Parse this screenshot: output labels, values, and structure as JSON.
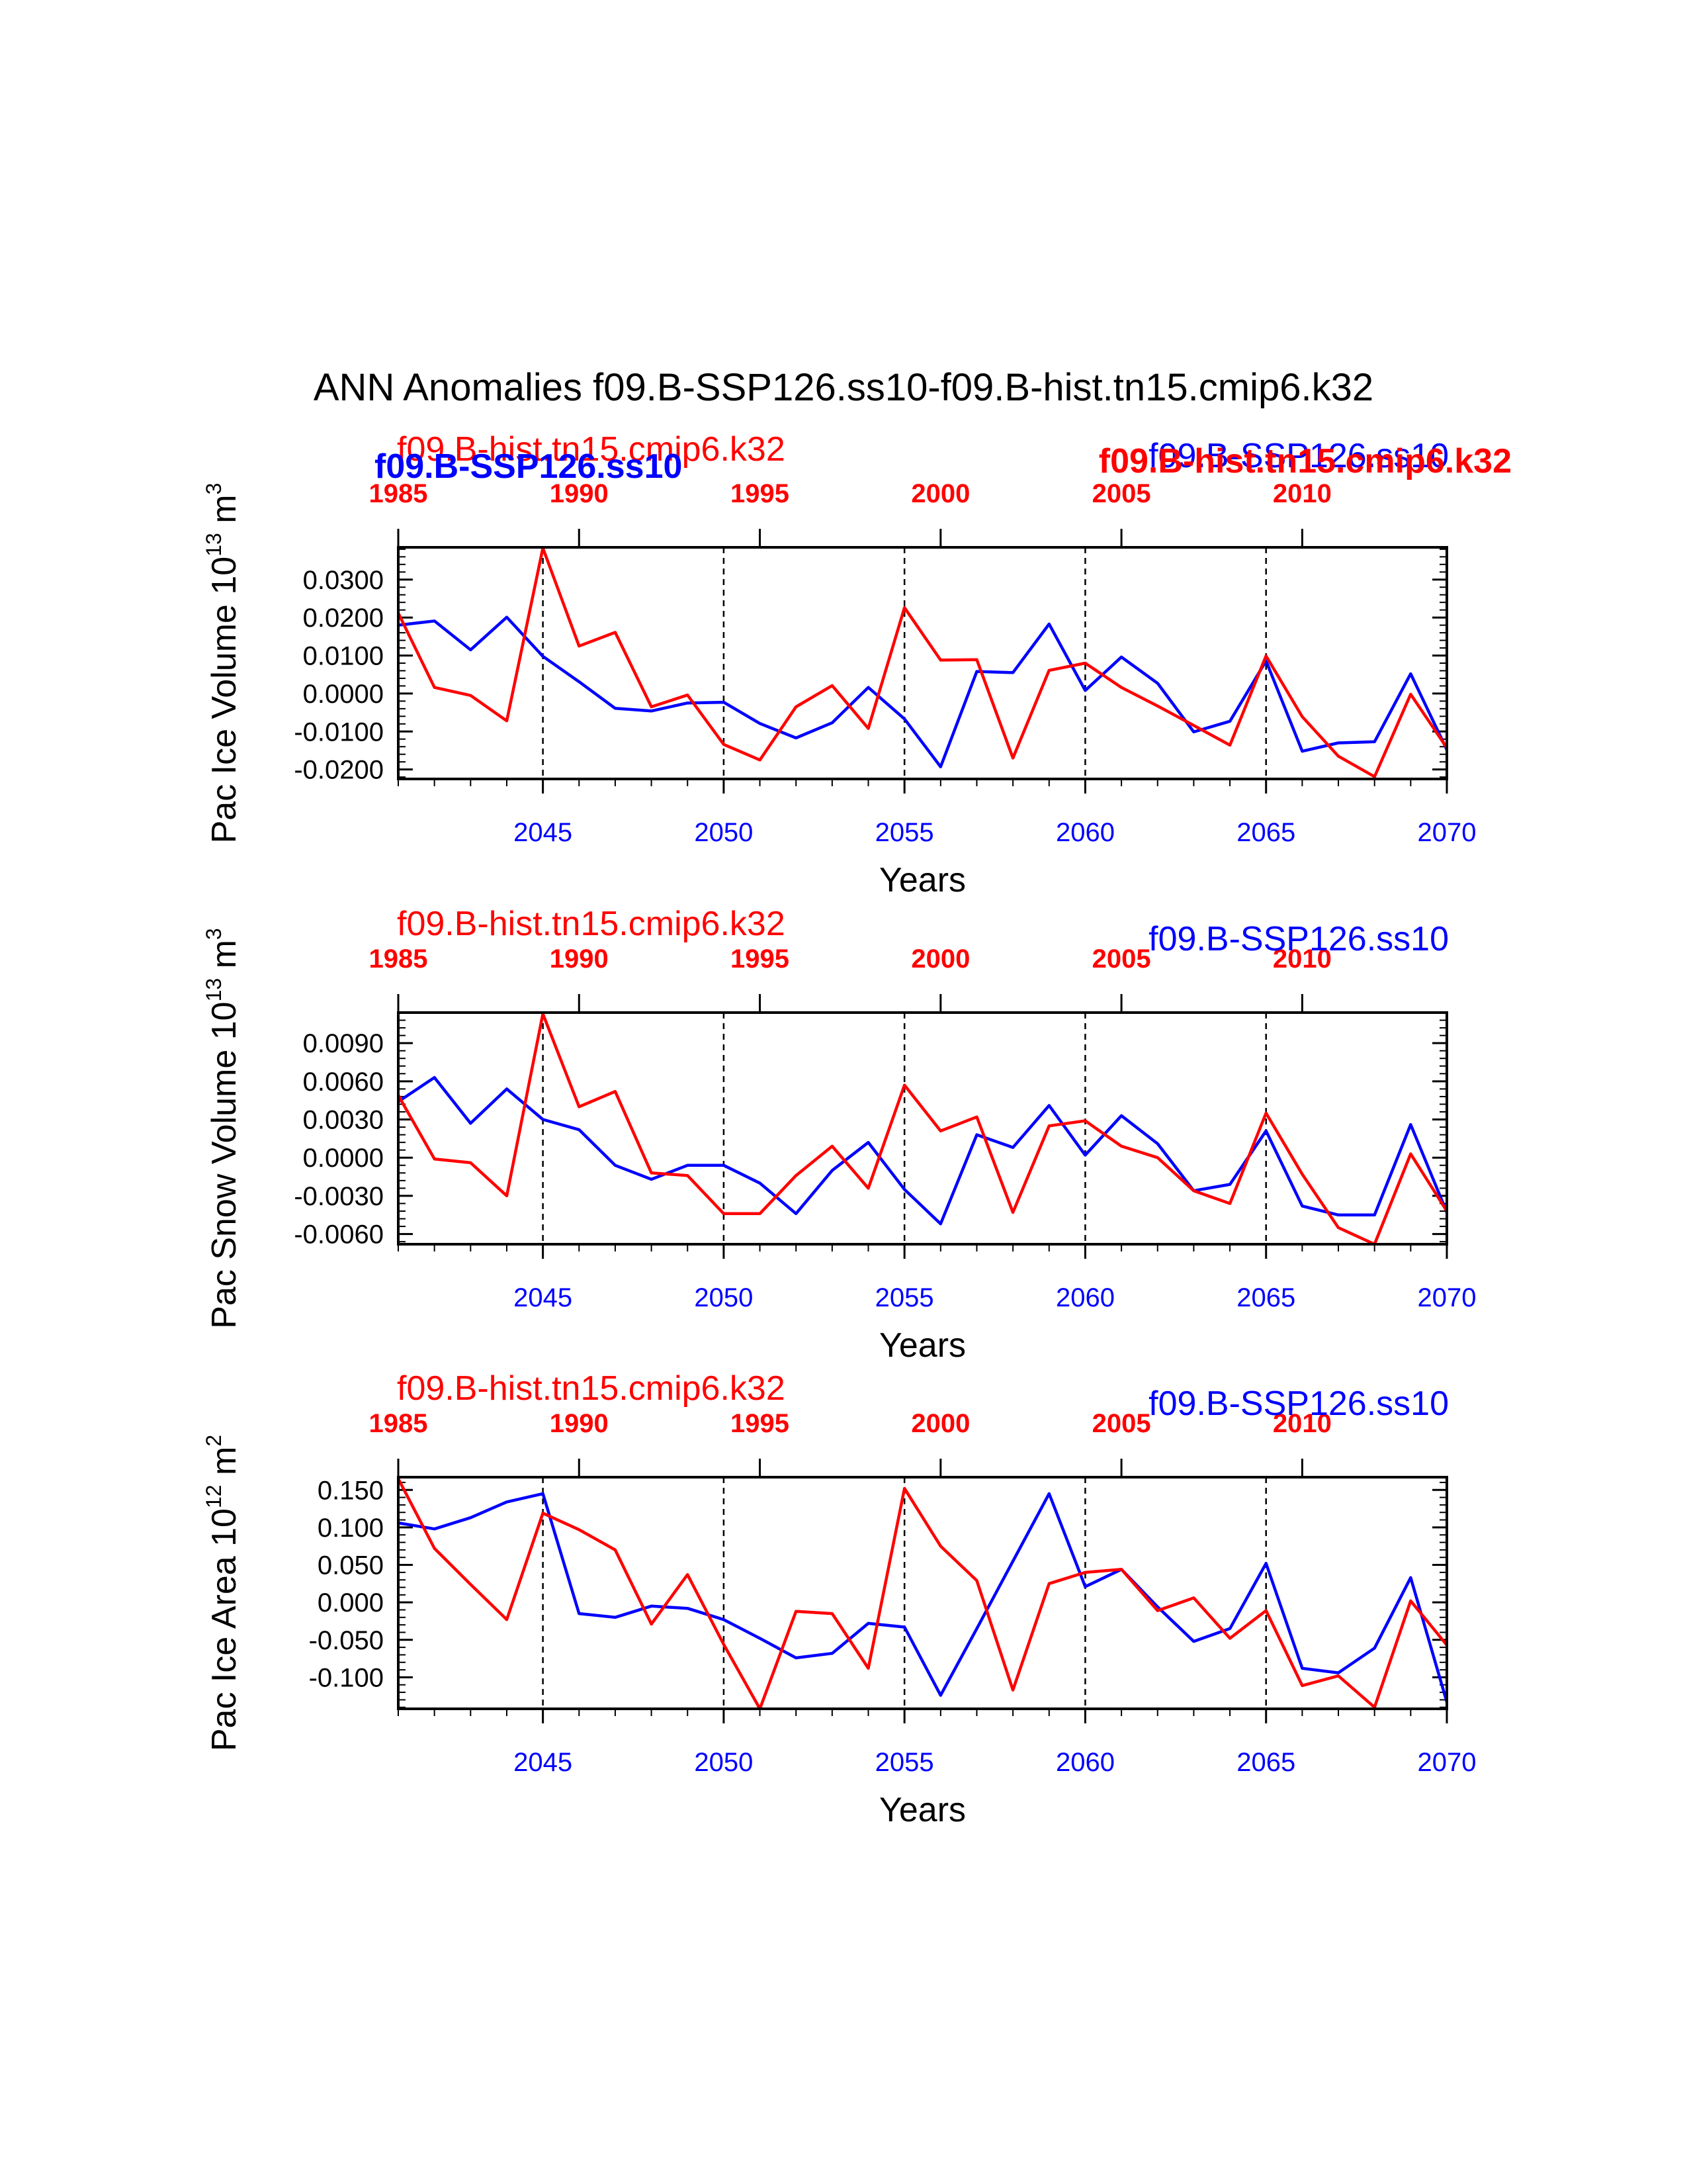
{
  "title": "ANN Anomalies f09.B-SSP126.ss10-f09.B-hist.tn15.cmip6.k32",
  "colors": {
    "model": "#ff0000",
    "control": "#0000ff",
    "axis": "#000000"
  },
  "top_labels": {
    "red_left": "f09.B-hist.tn15.cmip6.k32",
    "blue_left": "f09.B-SSP126.ss10",
    "blue_right": "f09.B-SSP126.ss10",
    "red_right": "f09.B-hist.tn15.cmip6.k32"
  },
  "chart_data": [
    {
      "type": "line",
      "ylabel_main": "Pac Ice Volume 10",
      "ylabel_exp": "13",
      "ylabel_unit": " m",
      "ylabel_unit_exp": "3",
      "xlabel": "Years",
      "red_series_label": "f09.B-hist.tn15.cmip6.k32",
      "blue_series_label": "f09.B-SSP126.ss10",
      "show_series_labels": false,
      "xlim": [
        2041,
        2070
      ],
      "ylim": [
        -0.0225,
        0.0385
      ],
      "yticks": [
        "0.0300",
        "0.0200",
        "0.0100",
        "0.0000",
        "-0.0100",
        "-0.0200"
      ],
      "bottom_xticks": [
        "2045",
        "2050",
        "2055",
        "2060",
        "2065",
        "2070"
      ],
      "top_xticks": [
        "1985",
        "1990",
        "1995",
        "2000",
        "2005",
        "2010"
      ],
      "vlines": [
        2045,
        2050,
        2055,
        2060,
        2065
      ],
      "x": [
        2041,
        2042,
        2043,
        2044,
        2045,
        2046,
        2047,
        2048,
        2049,
        2050,
        2051,
        2052,
        2053,
        2054,
        2055,
        2056,
        2057,
        2058,
        2059,
        2060,
        2061,
        2062,
        2063,
        2064,
        2065,
        2066,
        2067,
        2068,
        2069,
        2070
      ],
      "series": [
        {
          "name": "f09.B-SSP126.ss10",
          "color": "#0000ff",
          "values": [
            0.018,
            0.0191,
            0.0115,
            0.0201,
            0.0098,
            0.0031,
            -0.0039,
            -0.0046,
            -0.0025,
            -0.0023,
            -0.0079,
            -0.0117,
            -0.0077,
            0.0016,
            -0.0067,
            -0.0193,
            0.0058,
            0.0055,
            0.0183,
            0.0008,
            0.0096,
            0.0027,
            -0.0101,
            -0.0073,
            0.0086,
            -0.0152,
            -0.013,
            -0.0127,
            0.0052,
            -0.0148
          ]
        },
        {
          "name": "f09.B-hist.tn15.cmip6.k32",
          "color": "#ff0000",
          "values": [
            0.0212,
            0.0016,
            -0.0005,
            -0.0072,
            0.0383,
            0.0125,
            0.0161,
            -0.0035,
            -0.0004,
            -0.0134,
            -0.0175,
            -0.0035,
            0.0021,
            -0.0092,
            0.0226,
            0.0088,
            0.0089,
            -0.017,
            0.0061,
            0.008,
            0.0016,
            -0.0033,
            -0.0084,
            -0.0136,
            0.0099,
            -0.0061,
            -0.0165,
            -0.0219,
            -0.0002,
            -0.0143
          ]
        }
      ]
    },
    {
      "type": "line",
      "ylabel_main": "Pac Snow Volume 10",
      "ylabel_exp": "13",
      "ylabel_unit": " m",
      "ylabel_unit_exp": "3",
      "xlabel": "Years",
      "red_series_label": "f09.B-hist.tn15.cmip6.k32",
      "blue_series_label": "f09.B-SSP126.ss10",
      "show_series_labels": true,
      "xlim": [
        2041,
        2070
      ],
      "ylim": [
        -0.0068,
        0.0114
      ],
      "yticks": [
        "0.0090",
        "0.0060",
        "0.0030",
        "0.0000",
        "-0.0030",
        "-0.0060"
      ],
      "bottom_xticks": [
        "2045",
        "2050",
        "2055",
        "2060",
        "2065",
        "2070"
      ],
      "top_xticks": [
        "1985",
        "1990",
        "1995",
        "2000",
        "2005",
        "2010"
      ],
      "vlines": [
        2045,
        2050,
        2055,
        2060,
        2065
      ],
      "x": [
        2041,
        2042,
        2043,
        2044,
        2045,
        2046,
        2047,
        2048,
        2049,
        2050,
        2051,
        2052,
        2053,
        2054,
        2055,
        2056,
        2057,
        2058,
        2059,
        2060,
        2061,
        2062,
        2063,
        2064,
        2065,
        2066,
        2067,
        2068,
        2069,
        2070
      ],
      "series": [
        {
          "name": "f09.B-SSP126.ss10",
          "color": "#0000ff",
          "values": [
            0.0044,
            0.0063,
            0.0027,
            0.0054,
            0.003,
            0.0022,
            -0.0006,
            -0.0017,
            -0.0006,
            -0.0006,
            -0.002,
            -0.0044,
            -0.001,
            0.0012,
            -0.0025,
            -0.0052,
            0.0018,
            0.0008,
            0.0041,
            0.0002,
            0.0033,
            0.0011,
            -0.0026,
            -0.0021,
            0.0021,
            -0.0038,
            -0.0045,
            -0.0045,
            0.0026,
            -0.0043
          ]
        },
        {
          "name": "f09.B-hist.tn15.cmip6.k32",
          "color": "#ff0000",
          "values": [
            0.0049,
            -0.0001,
            -0.0004,
            -0.003,
            0.0113,
            0.004,
            0.0052,
            -0.0012,
            -0.0014,
            -0.0044,
            -0.0044,
            -0.0014,
            0.0009,
            -0.0024,
            0.0057,
            0.0021,
            0.0032,
            -0.0043,
            0.0025,
            0.0029,
            0.0009,
            0.0,
            -0.0026,
            -0.0036,
            0.0035,
            -0.0013,
            -0.0055,
            -0.0068,
            0.0003,
            -0.0042
          ]
        }
      ]
    },
    {
      "type": "line",
      "ylabel_main": "Pac Ice Area 10",
      "ylabel_exp": "12",
      "ylabel_unit": " m",
      "ylabel_unit_exp": "2",
      "xlabel": "Years",
      "red_series_label": "f09.B-hist.tn15.cmip6.k32",
      "blue_series_label": "f09.B-SSP126.ss10",
      "show_series_labels": true,
      "xlim": [
        2041,
        2070
      ],
      "ylim": [
        -0.142,
        0.167
      ],
      "yticks": [
        "0.150",
        "0.100",
        "0.050",
        "0.000",
        "-0.050",
        "-0.100"
      ],
      "bottom_xticks": [
        "2045",
        "2050",
        "2055",
        "2060",
        "2065",
        "2070"
      ],
      "top_xticks": [
        "1985",
        "1990",
        "1995",
        "2000",
        "2005",
        "2010"
      ],
      "vlines": [
        2045,
        2050,
        2055,
        2060,
        2065
      ],
      "x": [
        2041,
        2042,
        2043,
        2044,
        2045,
        2046,
        2047,
        2048,
        2049,
        2050,
        2051,
        2052,
        2053,
        2054,
        2055,
        2056,
        2057,
        2058,
        2059,
        2060,
        2061,
        2062,
        2063,
        2064,
        2065,
        2066,
        2067,
        2068,
        2069,
        2070
      ],
      "series": [
        {
          "name": "f09.B-SSP126.ss10",
          "color": "#0000ff",
          "values": [
            0.106,
            0.098,
            0.113,
            0.134,
            0.145,
            -0.015,
            -0.02,
            -0.005,
            -0.008,
            -0.023,
            -0.048,
            -0.074,
            -0.068,
            -0.028,
            -0.033,
            -0.124,
            -0.035,
            0.055,
            0.145,
            0.021,
            0.044,
            -0.006,
            -0.052,
            -0.035,
            0.052,
            -0.088,
            -0.094,
            -0.061,
            0.033,
            -0.133
          ]
        },
        {
          "name": "f09.B-hist.tn15.cmip6.k32",
          "color": "#ff0000",
          "values": [
            0.165,
            0.072,
            0.024,
            -0.023,
            0.119,
            0.097,
            0.07,
            -0.029,
            0.037,
            -0.056,
            -0.142,
            -0.012,
            -0.015,
            -0.088,
            0.152,
            0.075,
            0.029,
            -0.117,
            0.025,
            0.04,
            0.044,
            -0.011,
            0.006,
            -0.048,
            -0.011,
            -0.111,
            -0.098,
            -0.14,
            0.002,
            -0.057
          ]
        }
      ]
    }
  ]
}
